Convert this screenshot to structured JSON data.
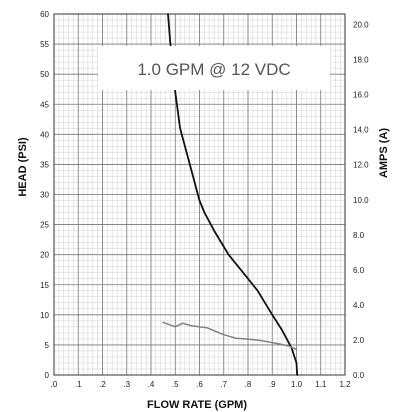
{
  "chart_data": {
    "type": "line",
    "annotation": "1.0 GPM @ 12 VDC",
    "xlabel": "FLOW RATE (GPM)",
    "ylabel": "HEAD   (PSI)",
    "y2label": "AMPS  (A)",
    "xlim": [
      0,
      1.2
    ],
    "ylim": [
      0,
      60
    ],
    "y2lim": [
      0,
      20.6
    ],
    "grid": true,
    "x_ticks": [
      ".0",
      ".1",
      ".2",
      ".3",
      ".4",
      ".5",
      ".6",
      ".7",
      ".8",
      ".9",
      "1.0",
      "1.1",
      "1.2"
    ],
    "y_ticks": [
      "0",
      "5",
      "10",
      "15",
      "20",
      "25",
      "30",
      "35",
      "40",
      "45",
      "50",
      "55",
      "60"
    ],
    "y2_ticks": [
      "0.0",
      "2.0",
      "4.0",
      "6.0",
      "8.0",
      "10.0",
      "12.0",
      "14.0",
      "16.0",
      "18.0",
      "20.0"
    ],
    "series": [
      {
        "axis": "left",
        "color": "#111111",
        "x": [
          0.47,
          0.48,
          0.5,
          0.52,
          0.56,
          0.6,
          0.62,
          0.66,
          0.72,
          0.78,
          0.84,
          0.9,
          0.94,
          0.98,
          1.0,
          1.003
        ],
        "y": [
          60,
          55,
          47,
          41,
          35,
          29,
          27,
          24,
          20,
          17,
          14,
          10,
          7.5,
          4.5,
          2,
          0
        ]
      },
      {
        "axis": "right",
        "color": "#808080",
        "x": [
          0.45,
          0.5,
          0.53,
          0.57,
          0.63,
          0.7,
          0.75,
          0.8,
          0.86,
          0.92,
          0.97,
          1.0
        ],
        "y": [
          3.0,
          2.75,
          2.95,
          2.8,
          2.7,
          2.3,
          2.1,
          2.05,
          1.95,
          1.8,
          1.65,
          1.45
        ]
      }
    ]
  }
}
